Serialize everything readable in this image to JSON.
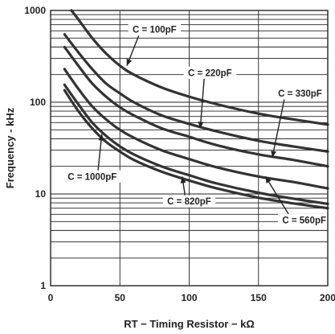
{
  "chart_data": {
    "type": "line",
    "title": "",
    "xlabel": "RT − Timing Resistor − kΩ",
    "ylabel": "Frequency - kHz",
    "xlim": [
      0,
      200
    ],
    "ylim": [
      1,
      1000
    ],
    "yscale": "log",
    "grid": true,
    "x_ticks": [
      "0",
      "50",
      "100",
      "150",
      "200"
    ],
    "y_ticks": [
      "1",
      "10",
      "100",
      "1000"
    ],
    "series": [
      {
        "name": "C = 100pF",
        "x": [
          15,
          20,
          30,
          40,
          50,
          60,
          80,
          100,
          120,
          150,
          175,
          200
        ],
        "y": [
          1000,
          800,
          500,
          340,
          250,
          200,
          145,
          115,
          95,
          75,
          65,
          57
        ],
        "label": {
          "text": "C = 100pF",
          "anchor": [
            55,
            250
          ],
          "pos": [
            75,
            620
          ]
        }
      },
      {
        "name": "C = 220pF",
        "x": [
          10,
          20,
          30,
          40,
          50,
          60,
          80,
          100,
          120,
          150,
          175,
          200
        ],
        "y": [
          550,
          350,
          230,
          160,
          125,
          100,
          72,
          58,
          48,
          38,
          33,
          29
        ],
        "label": {
          "text": "C = 220pF",
          "anchor": [
            108,
            52
          ],
          "pos": [
            115,
            210
          ]
        }
      },
      {
        "name": "C = 330pF",
        "x": [
          10,
          20,
          30,
          40,
          50,
          60,
          80,
          100,
          120,
          150,
          175,
          200
        ],
        "y": [
          400,
          250,
          160,
          115,
          88,
          72,
          52,
          42,
          34,
          27,
          23.5,
          20
        ],
        "label": {
          "text": "C = 330pF",
          "anchor": [
            160,
            25
          ],
          "pos": [
            180,
            125
          ]
        }
      },
      {
        "name": "C = 560pF",
        "x": [
          10,
          20,
          30,
          40,
          50,
          60,
          80,
          100,
          120,
          150,
          175,
          200
        ],
        "y": [
          230,
          140,
          90,
          65,
          50,
          41,
          30,
          24,
          19.5,
          15.5,
          13.5,
          11.5
        ],
        "label": {
          "text": "C = 560pF",
          "anchor": [
            155,
            15.5
          ],
          "pos": [
            183,
            5.2
          ]
        }
      },
      {
        "name": "C = 820pF",
        "x": [
          10,
          20,
          30,
          40,
          50,
          60,
          80,
          100,
          120,
          150,
          175,
          200
        ],
        "y": [
          155,
          95,
          60,
          43,
          33,
          27,
          20,
          16,
          13,
          10.3,
          8.9,
          7.8
        ],
        "label": {
          "text": "C = 820pF",
          "anchor": [
            95,
            15.5
          ],
          "pos": [
            100,
            8.3
          ]
        }
      },
      {
        "name": "C = 1000pF",
        "x": [
          10,
          20,
          30,
          40,
          50,
          60,
          80,
          100,
          120,
          150,
          175,
          200
        ],
        "y": [
          135,
          80,
          52,
          37,
          29,
          23.5,
          17.5,
          14,
          11.5,
          9.1,
          7.9,
          7
        ],
        "label": {
          "text": "C = 1000pF",
          "anchor": [
            37,
            45
          ],
          "pos": [
            30,
            15.5
          ]
        }
      }
    ]
  }
}
